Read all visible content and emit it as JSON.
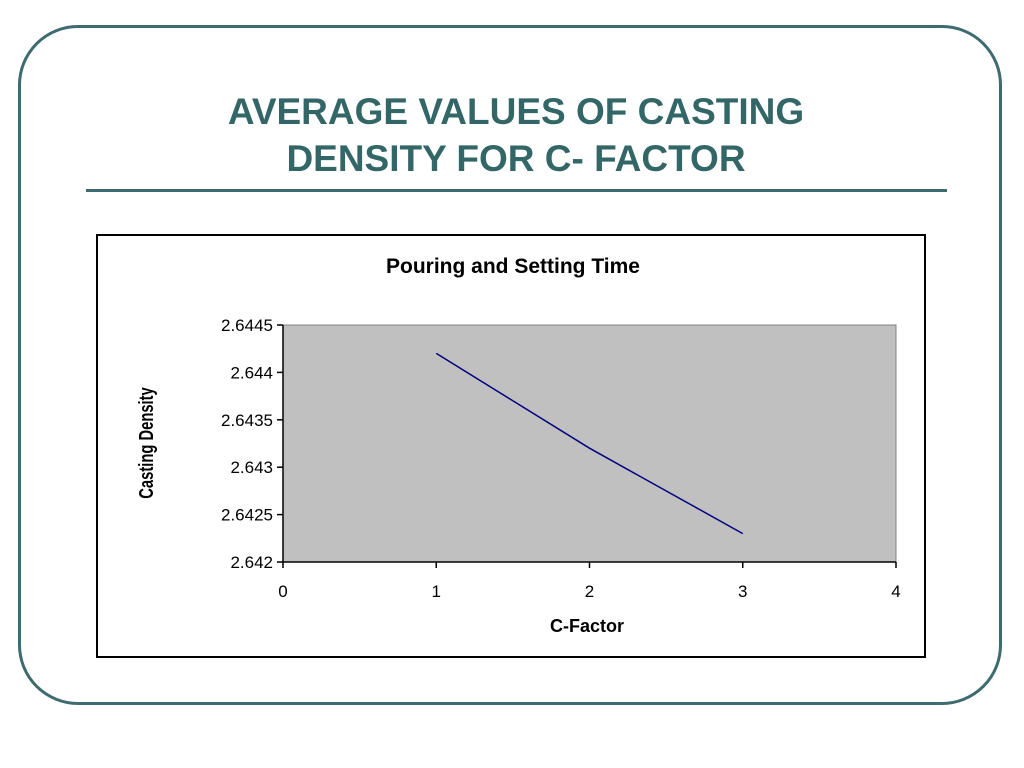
{
  "slide": {
    "title_line1": "AVERAGE VALUES OF CASTING",
    "title_line2": "DENSITY FOR C- FACTOR"
  },
  "colors": {
    "title": "#336666",
    "frame": "#3d6b70",
    "plot_area": "#c0c0c0",
    "series_line": "#000080"
  },
  "chart_data": {
    "type": "line",
    "title": "Pouring and Setting Time",
    "xlabel": "C-Factor",
    "ylabel": "Casting Density",
    "xlim": [
      0,
      4
    ],
    "ylim": [
      2.642,
      2.6445
    ],
    "x_ticks": [
      "0",
      "1",
      "2",
      "3",
      "4"
    ],
    "y_ticks": [
      "2.6445",
      "2.644",
      "2.6435",
      "2.643",
      "2.6425",
      "2.642"
    ],
    "grid": false,
    "legend": "none",
    "series": [
      {
        "x": [
          1,
          2,
          3
        ],
        "values": [
          2.6442,
          2.6432,
          2.6423
        ]
      }
    ]
  }
}
